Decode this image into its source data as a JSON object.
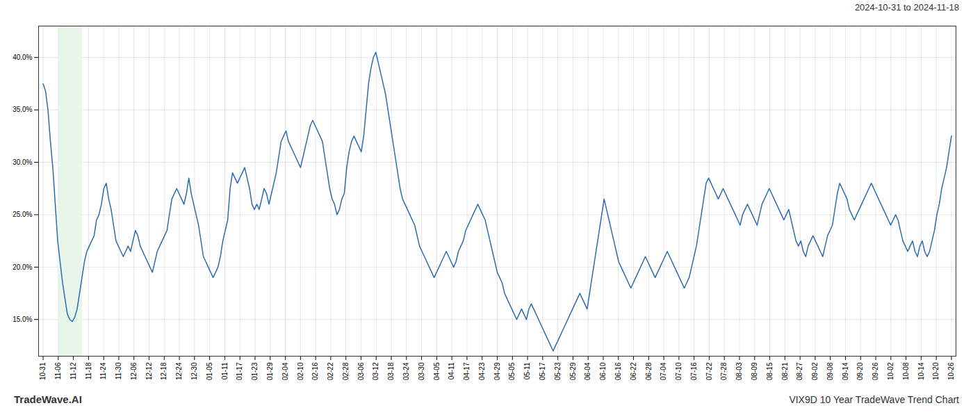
{
  "chart_data": {
    "type": "line",
    "title": "2024-10-31 to 2024-11-18",
    "annotations": [
      "TradeWave.AI",
      "VIX9D 10 Year TradeWave Trend Chart"
    ],
    "color": "#2b6cb0",
    "grid": true,
    "xlim": [
      -0.3,
      60.3
    ],
    "xticks": [
      {
        "value": 0,
        "label": "10-31"
      },
      {
        "value": 1,
        "label": "11-06"
      },
      {
        "value": 2,
        "label": "11-12"
      },
      {
        "value": 3,
        "label": "11-18"
      },
      {
        "value": 4,
        "label": "11-24"
      },
      {
        "value": 5,
        "label": "11-30"
      },
      {
        "value": 6,
        "label": "12-06"
      },
      {
        "value": 7,
        "label": "12-12"
      },
      {
        "value": 8,
        "label": "12-18"
      },
      {
        "value": 9,
        "label": "12-24"
      },
      {
        "value": 10,
        "label": "12-30"
      },
      {
        "value": 11,
        "label": "01-05"
      },
      {
        "value": 12,
        "label": "01-11"
      },
      {
        "value": 13,
        "label": "01-17"
      },
      {
        "value": 14,
        "label": "01-23"
      },
      {
        "value": 15,
        "label": "01-29"
      },
      {
        "value": 16,
        "label": "02-04"
      },
      {
        "value": 17,
        "label": "02-10"
      },
      {
        "value": 18,
        "label": "02-16"
      },
      {
        "value": 19,
        "label": "02-22"
      },
      {
        "value": 20,
        "label": "02-28"
      },
      {
        "value": 21,
        "label": "03-06"
      },
      {
        "value": 22,
        "label": "03-12"
      },
      {
        "value": 23,
        "label": "03-18"
      },
      {
        "value": 24,
        "label": "03-24"
      },
      {
        "value": 25,
        "label": "03-30"
      },
      {
        "value": 26,
        "label": "04-05"
      },
      {
        "value": 27,
        "label": "04-11"
      },
      {
        "value": 28,
        "label": "04-17"
      },
      {
        "value": 29,
        "label": "04-23"
      },
      {
        "value": 30,
        "label": "04-29"
      },
      {
        "value": 31,
        "label": "05-05"
      },
      {
        "value": 32,
        "label": "05-11"
      },
      {
        "value": 33,
        "label": "05-17"
      },
      {
        "value": 34,
        "label": "05-23"
      },
      {
        "value": 35,
        "label": "05-29"
      },
      {
        "value": 36,
        "label": "06-04"
      },
      {
        "value": 37,
        "label": "06-10"
      },
      {
        "value": 38,
        "label": "06-16"
      },
      {
        "value": 39,
        "label": "06-22"
      },
      {
        "value": 40,
        "label": "06-28"
      },
      {
        "value": 41,
        "label": "07-04"
      },
      {
        "value": 42,
        "label": "07-10"
      },
      {
        "value": 43,
        "label": "07-16"
      },
      {
        "value": 44,
        "label": "07-22"
      },
      {
        "value": 45,
        "label": "07-28"
      },
      {
        "value": 46,
        "label": "08-03"
      },
      {
        "value": 47,
        "label": "08-09"
      },
      {
        "value": 48,
        "label": "08-15"
      },
      {
        "value": 49,
        "label": "08-21"
      },
      {
        "value": 50,
        "label": "08-27"
      },
      {
        "value": 51,
        "label": "09-02"
      },
      {
        "value": 52,
        "label": "09-08"
      },
      {
        "value": 53,
        "label": "09-14"
      },
      {
        "value": 54,
        "label": "09-20"
      },
      {
        "value": 55,
        "label": "09-26"
      },
      {
        "value": 56,
        "label": "10-02"
      },
      {
        "value": 57,
        "label": "10-08"
      },
      {
        "value": 58,
        "label": "10-14"
      },
      {
        "value": 59,
        "label": "10-20"
      },
      {
        "value": 60,
        "label": "10-26"
      }
    ],
    "ylim": [
      11.5,
      43.0
    ],
    "yticks": [
      {
        "value": 15.0,
        "label": "15.0%"
      },
      {
        "value": 20.0,
        "label": "20.0%"
      },
      {
        "value": 25.0,
        "label": "25.0%"
      },
      {
        "value": 30.0,
        "label": "30.0%"
      },
      {
        "value": 35.0,
        "label": "35.0%"
      },
      {
        "value": 40.0,
        "label": "40.0%"
      }
    ],
    "spans": [
      {
        "x_start": 1.0,
        "x_end": 2.6,
        "color": "#e8f5e9"
      }
    ],
    "values": [
      37.5,
      36.8,
      35.0,
      32.0,
      29.5,
      26.0,
      22.5,
      20.5,
      18.5,
      17.0,
      15.5,
      15.0,
      14.8,
      15.2,
      16.0,
      17.5,
      19.0,
      20.5,
      21.5,
      22.0,
      22.5,
      23.0,
      24.5,
      25.0,
      26.0,
      27.5,
      28.0,
      26.5,
      25.5,
      24.0,
      22.5,
      22.0,
      21.5,
      21.0,
      21.5,
      22.0,
      21.5,
      22.5,
      23.5,
      23.0,
      22.0,
      21.5,
      21.0,
      20.5,
      20.0,
      19.5,
      20.5,
      21.5,
      22.0,
      22.5,
      23.0,
      23.5,
      25.0,
      26.5,
      27.0,
      27.5,
      27.0,
      26.5,
      26.0,
      27.0,
      28.5,
      27.0,
      26.0,
      25.0,
      24.0,
      22.5,
      21.0,
      20.5,
      20.0,
      19.5,
      19.0,
      19.5,
      20.0,
      21.0,
      22.5,
      23.5,
      24.5,
      27.5,
      29.0,
      28.5,
      28.0,
      28.5,
      29.0,
      29.5,
      28.5,
      27.5,
      26.0,
      25.5,
      26.0,
      25.5,
      26.5,
      27.5,
      27.0,
      26.0,
      27.0,
      28.0,
      29.0,
      30.5,
      32.0,
      32.5,
      33.0,
      32.0,
      31.5,
      31.0,
      30.5,
      30.0,
      29.5,
      30.5,
      31.5,
      32.5,
      33.5,
      34.0,
      33.5,
      33.0,
      32.5,
      32.0,
      30.5,
      29.0,
      27.5,
      26.5,
      26.0,
      25.0,
      25.5,
      26.5,
      27.0,
      29.5,
      31.0,
      32.0,
      32.5,
      32.0,
      31.5,
      31.0,
      32.5,
      35.0,
      37.5,
      39.0,
      40.0,
      40.5,
      39.5,
      38.5,
      37.5,
      36.5,
      35.0,
      33.5,
      32.0,
      30.5,
      29.0,
      27.5,
      26.5,
      26.0,
      25.5,
      25.0,
      24.5,
      24.0,
      23.0,
      22.0,
      21.5,
      21.0,
      20.5,
      20.0,
      19.5,
      19.0,
      19.5,
      20.0,
      20.5,
      21.0,
      21.5,
      21.0,
      20.5,
      20.0,
      20.5,
      21.5,
      22.0,
      22.5,
      23.5,
      24.0,
      24.5,
      25.0,
      25.5,
      26.0,
      25.5,
      25.0,
      24.5,
      23.5,
      22.5,
      21.5,
      20.5,
      19.5,
      19.0,
      18.5,
      17.5,
      17.0,
      16.5,
      16.0,
      15.5,
      15.0,
      15.5,
      16.0,
      15.5,
      15.0,
      16.0,
      16.5,
      16.0,
      15.5,
      15.0,
      14.5,
      14.0,
      13.5,
      13.0,
      12.5,
      12.0,
      12.5,
      13.0,
      13.5,
      14.0,
      14.5,
      15.0,
      15.5,
      16.0,
      16.5,
      17.0,
      17.5,
      17.0,
      16.5,
      16.0,
      17.5,
      19.0,
      20.5,
      22.0,
      23.5,
      25.0,
      26.5,
      25.5,
      24.5,
      23.5,
      22.5,
      21.5,
      20.5,
      20.0,
      19.5,
      19.0,
      18.5,
      18.0,
      18.5,
      19.0,
      19.5,
      20.0,
      20.5,
      21.0,
      20.5,
      20.0,
      19.5,
      19.0,
      19.5,
      20.0,
      20.5,
      21.0,
      21.5,
      21.0,
      20.5,
      20.0,
      19.5,
      19.0,
      18.5,
      18.0,
      18.5,
      19.0,
      20.0,
      21.0,
      22.0,
      23.5,
      25.0,
      26.5,
      28.0,
      28.5,
      28.0,
      27.5,
      27.0,
      26.5,
      27.0,
      27.5,
      27.0,
      26.5,
      26.0,
      25.5,
      25.0,
      24.5,
      24.0,
      25.0,
      25.5,
      26.0,
      25.5,
      25.0,
      24.5,
      24.0,
      25.0,
      26.0,
      26.5,
      27.0,
      27.5,
      27.0,
      26.5,
      26.0,
      25.5,
      25.0,
      24.5,
      25.0,
      25.5,
      24.5,
      23.5,
      22.5,
      22.0,
      22.5,
      21.5,
      21.0,
      22.0,
      22.5,
      23.0,
      22.5,
      22.0,
      21.5,
      21.0,
      22.0,
      23.0,
      23.5,
      24.0,
      25.5,
      27.0,
      28.0,
      27.5,
      27.0,
      26.5,
      25.5,
      25.0,
      24.5,
      25.0,
      25.5,
      26.0,
      26.5,
      27.0,
      27.5,
      28.0,
      27.5,
      27.0,
      26.5,
      26.0,
      25.5,
      25.0,
      24.5,
      24.0,
      24.5,
      25.0,
      24.5,
      23.5,
      22.5,
      22.0,
      21.5,
      22.0,
      22.5,
      21.5,
      21.0,
      22.0,
      22.5,
      21.5,
      21.0,
      21.5,
      22.5,
      23.5,
      25.0,
      26.0,
      27.5,
      28.5,
      29.5,
      31.0,
      32.5
    ]
  }
}
